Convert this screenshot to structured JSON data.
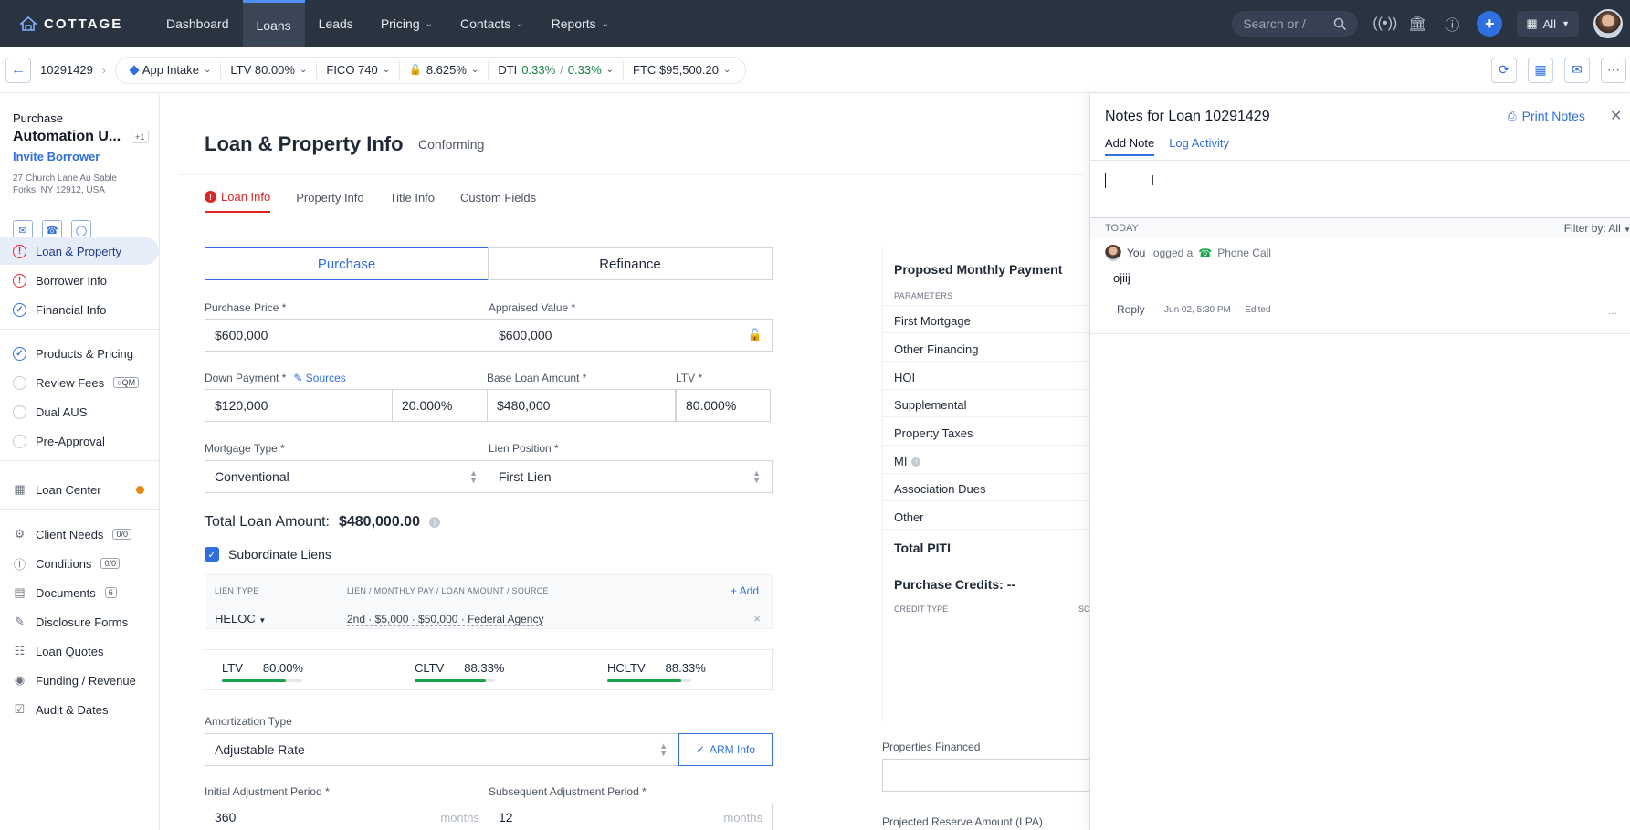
{
  "topnav": {
    "brand": "COTTAGE",
    "items": [
      {
        "label": "Dashboard",
        "has_menu": false
      },
      {
        "label": "Loans",
        "has_menu": false,
        "active": true
      },
      {
        "label": "Leads",
        "has_menu": false
      },
      {
        "label": "Pricing",
        "has_menu": true
      },
      {
        "label": "Contacts",
        "has_menu": true
      },
      {
        "label": "Reports",
        "has_menu": true
      }
    ],
    "search_placeholder": "Search or /",
    "org_filter": "All"
  },
  "subbar": {
    "loan_number": "10291429",
    "stage": "App Intake",
    "ltv": "LTV 80.00%",
    "fico": "FICO 740",
    "rate": "8.625%",
    "dti_label": "DTI",
    "dti_front": "0.33%",
    "dti_sep": "/",
    "dti_back": "0.33%",
    "ftc": "FTC $95,500.20"
  },
  "sidebar": {
    "purpose": "Purchase",
    "borrower_name": "Automation U...",
    "extra_badge": "+1",
    "invite_label": "Invite Borrower",
    "address": "27 Church Lane Au Sable Forks, NY 12912, USA",
    "steps": [
      {
        "label": "Loan & Property",
        "status": "error",
        "active": true
      },
      {
        "label": "Borrower Info",
        "status": "error"
      },
      {
        "label": "Financial Info",
        "status": "complete"
      }
    ],
    "workflow": [
      {
        "label": "Products & Pricing",
        "status": "complete"
      },
      {
        "label": "Review Fees",
        "status": "empty",
        "badge": "QM"
      },
      {
        "label": "Dual AUS",
        "status": "empty"
      },
      {
        "label": "Pre-Approval",
        "status": "empty"
      }
    ],
    "loan_center": "Loan Center",
    "tools": [
      {
        "label": "Client Needs",
        "count": "0/0",
        "icon": "client-needs-icon"
      },
      {
        "label": "Conditions",
        "count": "0/0",
        "icon": "conditions-icon"
      },
      {
        "label": "Documents",
        "count": "6",
        "icon": "documents-icon"
      },
      {
        "label": "Disclosure Forms",
        "icon": "disclosure-icon"
      },
      {
        "label": "Loan Quotes",
        "icon": "quotes-icon"
      },
      {
        "label": "Funding / Revenue",
        "icon": "funding-icon"
      },
      {
        "label": "Audit & Dates",
        "icon": "audit-icon"
      }
    ]
  },
  "main": {
    "title": "Loan & Property Info",
    "subtitle": "Conforming",
    "tabs": [
      "Loan Info",
      "Property Info",
      "Title Info",
      "Custom Fields"
    ],
    "purpose_toggle": [
      "Purchase",
      "Refinance"
    ],
    "purchase_price_label": "Purchase Price *",
    "purchase_price": "$600,000",
    "appraised_value_label": "Appraised Value *",
    "appraised_value": "$600,000",
    "down_payment_label": "Down Payment *",
    "sources_label": "Sources",
    "down_payment": "$120,000",
    "down_payment_pct": "20.000%",
    "base_loan_label": "Base Loan Amount *",
    "base_loan": "$480,000",
    "ltv_label": "LTV *",
    "ltv_value": "80.000%",
    "mortgage_type_label": "Mortgage Type *",
    "mortgage_type": "Conventional",
    "lien_position_label": "Lien Position *",
    "lien_position": "First Lien",
    "total_loan_label": "Total Loan Amount:",
    "total_loan_value": "$480,000.00",
    "subordinate_liens_label": "Subordinate Liens",
    "lien_table": {
      "col_type": "LIEN TYPE",
      "col_desc": "LIEN / MONTHLY PAY / LOAN AMOUNT / SOURCE",
      "add_label": "Add",
      "row_type": "HELOC",
      "row_desc": "2nd  · $5,000 · $50,000 · Federal Agency"
    },
    "ratios": [
      {
        "label": "LTV",
        "value": "80.00%",
        "fill": 0.8
      },
      {
        "label": "CLTV",
        "value": "88.33%",
        "fill": 0.8833
      },
      {
        "label": "HCLTV",
        "value": "88.33%",
        "fill": 0.8833
      }
    ],
    "amortization_label": "Amortization Type",
    "amortization": "Adjustable Rate",
    "arm_info_label": "ARM Info",
    "initial_adj_label": "Initial Adjustment Period *",
    "initial_adj": "360",
    "subsequent_adj_label": "Subsequent Adjustment Period *",
    "subsequent_adj": "12",
    "months_suffix": "months"
  },
  "payment": {
    "title": "Proposed Monthly Payment",
    "params_header": "PARAMETERS",
    "rows": [
      "First Mortgage",
      "Other Financing",
      "HOI",
      "Supplemental",
      "Property Taxes",
      "MI",
      "Association Dues",
      "Other"
    ],
    "total_label": "Total PITI",
    "credits_title": "Purchase Credits: --",
    "credit_type_header": "CREDIT TYPE",
    "credit_col2_header": "SC",
    "properties_financed_label": "Properties Financed",
    "projected_reserve_label": "Projected Reserve Amount (LPA)"
  },
  "notes": {
    "title": "Notes for Loan 10291429",
    "print_label": "Print Notes",
    "tabs": [
      "Add Note",
      "Log Activity"
    ],
    "group_label": "TODAY",
    "filter_label": "Filter by: All",
    "entry_actor": "You",
    "entry_action": "logged a",
    "entry_type": "Phone Call",
    "entry_body": "ojiij",
    "reply_label": "Reply",
    "entry_time": "Jun 02, 5:30 PM",
    "entry_edited": "Edited",
    "more_label": "..."
  },
  "colors": {
    "nav_bg": "#2a3441",
    "accent": "#2f6fdf",
    "error": "#dc2626",
    "success": "#16a34a"
  }
}
